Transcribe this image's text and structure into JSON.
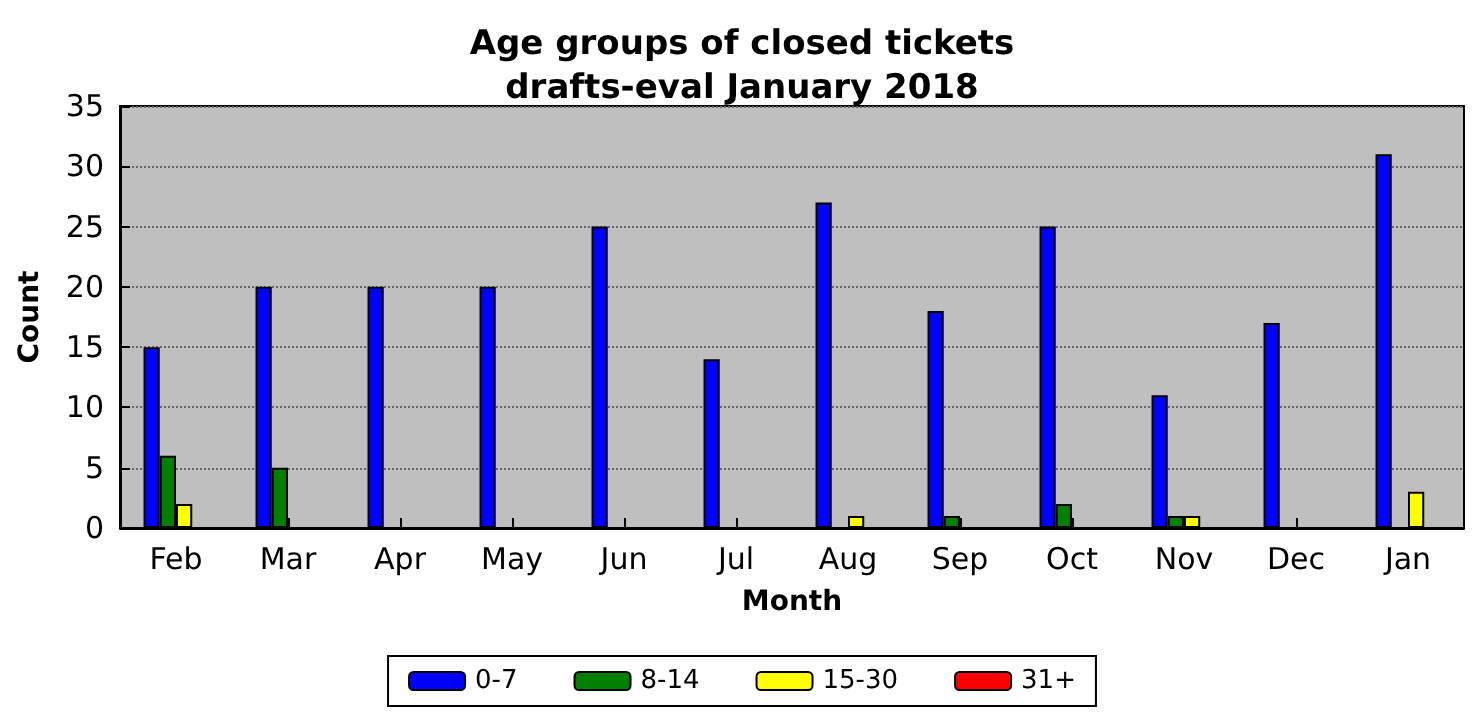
{
  "chart_data": {
    "type": "bar",
    "title": "Age groups of closed tickets\ndrafts-eval January 2018",
    "xlabel": "Month",
    "ylabel": "Count",
    "categories": [
      "Feb",
      "Mar",
      "Apr",
      "May",
      "Jun",
      "Jul",
      "Aug",
      "Sep",
      "Oct",
      "Nov",
      "Dec",
      "Jan"
    ],
    "series": [
      {
        "name": "0-7",
        "color": "#0000ff",
        "values": [
          15,
          20,
          20,
          20,
          25,
          14,
          27,
          18,
          25,
          11,
          17,
          31
        ]
      },
      {
        "name": "8-14",
        "color": "#008000",
        "values": [
          6,
          5,
          0,
          0,
          0,
          0,
          0,
          1,
          2,
          1,
          0,
          0
        ]
      },
      {
        "name": "15-30",
        "color": "#ffff00",
        "values": [
          2,
          0,
          0,
          0,
          0,
          0,
          1,
          0,
          0,
          1,
          0,
          3
        ]
      },
      {
        "name": "31+",
        "color": "#ff0000",
        "values": [
          0,
          0,
          0,
          0,
          0,
          0,
          0,
          0,
          0,
          0,
          0,
          0
        ]
      }
    ],
    "ylim": [
      0,
      35
    ],
    "yticks": [
      0,
      5,
      10,
      15,
      20,
      25,
      30,
      35
    ],
    "grid": "y",
    "legend": "bottom"
  }
}
